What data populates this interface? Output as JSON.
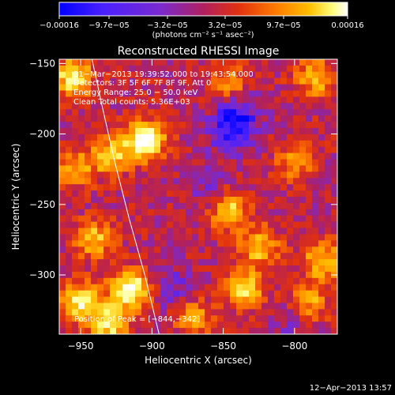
{
  "chart_data": {
    "type": "heatmap",
    "title": "Reconstructed RHESSI Image",
    "xlabel": "Heliocentric X (arcsec)",
    "ylabel": "Heliocentric Y (arcsec)",
    "xlim": [
      -965,
      -770
    ],
    "ylim": [
      -342,
      -147
    ],
    "x_ticks": [
      -950,
      -900,
      -850,
      -800
    ],
    "x_tick_labels": [
      "−950",
      "−900",
      "−850",
      "−800"
    ],
    "y_ticks": [
      -150,
      -200,
      -250,
      -300
    ],
    "y_tick_labels": [
      "−150",
      "−200",
      "−250",
      "−300"
    ],
    "colorbar": {
      "label": "(photons cm⁻² s⁻¹ asec⁻²)",
      "min": -0.00016,
      "max": 0.00016,
      "tick_labels": [
        "−0.00016",
        "−9.7e−05",
        "−3.2e−05",
        "3.2e−05",
        "9.7e−05",
        "0.00016"
      ],
      "colormap": [
        "#0000ff",
        "#4a20ff",
        "#7a2ad0",
        "#b02060",
        "#e03010",
        "#ff7a00",
        "#ffc000",
        "#ffff80",
        "#ffffff"
      ]
    },
    "annotations": [
      "31−Mar−2013 19:39:52.000 to 19:43:54.000",
      "Detectors: 3F 5F 6F 7F 8F 9F, Att 0",
      "Energy Range: 25.0 − 50.0 keV",
      "Clean    Total counts: 5.36E+03"
    ],
    "peak_label": "Position of Peak = [−844,−342]",
    "peak_position": [
      -844,
      -342
    ],
    "limb_curve": [
      [
        -942,
        -147
      ],
      [
        -935,
        -180
      ],
      [
        -926,
        -220
      ],
      [
        -916,
        -260
      ],
      [
        -905,
        -300
      ],
      [
        -895,
        -342
      ]
    ],
    "hotspots": [
      {
        "x": -955,
        "y": -160,
        "intensity": 0.75
      },
      {
        "x": -905,
        "y": -205,
        "intensity": 0.95
      },
      {
        "x": -930,
        "y": -215,
        "intensity": 0.6
      },
      {
        "x": -955,
        "y": -225,
        "intensity": 0.5
      },
      {
        "x": -940,
        "y": -275,
        "intensity": 0.55
      },
      {
        "x": -915,
        "y": -310,
        "intensity": 0.9
      },
      {
        "x": -950,
        "y": -320,
        "intensity": 0.75
      },
      {
        "x": -930,
        "y": -335,
        "intensity": 0.7
      },
      {
        "x": -845,
        "y": -255,
        "intensity": 0.6
      },
      {
        "x": -825,
        "y": -280,
        "intensity": 0.55
      },
      {
        "x": -835,
        "y": -310,
        "intensity": 0.65
      },
      {
        "x": -780,
        "y": -290,
        "intensity": 0.6
      },
      {
        "x": -790,
        "y": -320,
        "intensity": 0.5
      },
      {
        "x": -785,
        "y": -160,
        "intensity": 0.55
      },
      {
        "x": -800,
        "y": -220,
        "intensity": 0.4
      },
      {
        "x": -845,
        "y": -165,
        "intensity": 0.4
      },
      {
        "x": -870,
        "y": -330,
        "intensity": 0.45
      }
    ],
    "coldspots": [
      {
        "x": -840,
        "y": -185,
        "intensity": 0.8
      },
      {
        "x": -845,
        "y": -200,
        "intensity": 0.7
      },
      {
        "x": -885,
        "y": -310,
        "intensity": 0.45
      },
      {
        "x": -860,
        "y": -240,
        "intensity": 0.3
      },
      {
        "x": -800,
        "y": -330,
        "intensity": 0.4
      }
    ]
  },
  "footer": {
    "timestamp": "12−Apr−2013 13:57"
  }
}
